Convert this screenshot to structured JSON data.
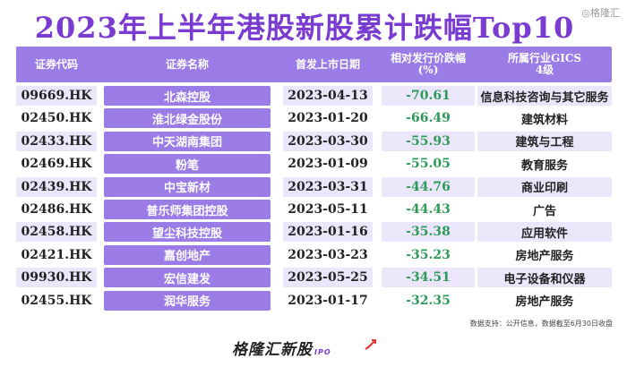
{
  "title": "2023年上半年港股新股累计跌幅Top10",
  "watermark": "◎格隆汇",
  "headers": {
    "code": "证券代码",
    "name": "证券名称",
    "date": "首发上市日期",
    "drop_line1": "相对发行价跌幅",
    "drop_line2": "(%)",
    "industry_line1": "所属行业GICS",
    "industry_line2": "4级"
  },
  "rows": [
    {
      "code": "09669.HK",
      "name": "北森控股",
      "date": "2023-04-13",
      "drop": "-70.61",
      "industry": "信息科技咨询与其它服务"
    },
    {
      "code": "02450.HK",
      "name": "淮北绿金股份",
      "date": "2023-01-20",
      "drop": "-66.49",
      "industry": "建筑材料"
    },
    {
      "code": "02433.HK",
      "name": "中天湖南集团",
      "date": "2023-03-30",
      "drop": "-55.93",
      "industry": "建筑与工程"
    },
    {
      "code": "02469.HK",
      "name": "粉笔",
      "date": "2023-01-09",
      "drop": "-55.05",
      "industry": "教育服务"
    },
    {
      "code": "02439.HK",
      "name": "中宝新材",
      "date": "2023-03-31",
      "drop": "-44.76",
      "industry": "商业印刷"
    },
    {
      "code": "02486.HK",
      "name": "普乐师集团控股",
      "date": "2023-05-11",
      "drop": "-44.43",
      "industry": "广告"
    },
    {
      "code": "02458.HK",
      "name": "望尘科技控股",
      "date": "2023-01-16",
      "drop": "-35.38",
      "industry": "应用软件"
    },
    {
      "code": "02421.HK",
      "name": "嘉创地产",
      "date": "2023-03-23",
      "drop": "-35.23",
      "industry": "房地产服务"
    },
    {
      "code": "09930.HK",
      "name": "宏信建发",
      "date": "2023-05-25",
      "drop": "-34.51",
      "industry": "电子设备和仪器"
    },
    {
      "code": "02455.HK",
      "name": "润华服务",
      "date": "2023-01-17",
      "drop": "-32.35",
      "industry": "房地产服务"
    }
  ],
  "footnote": "数据支持：公开信息，数据截至6月30日收盘",
  "logo": {
    "text": "格隆汇新股",
    "sub": "IPO"
  },
  "colors": {
    "accent": "#9b7be6",
    "title": "#7a3bd1",
    "negative": "#2e9a59",
    "stripe": "#ece6fb"
  }
}
